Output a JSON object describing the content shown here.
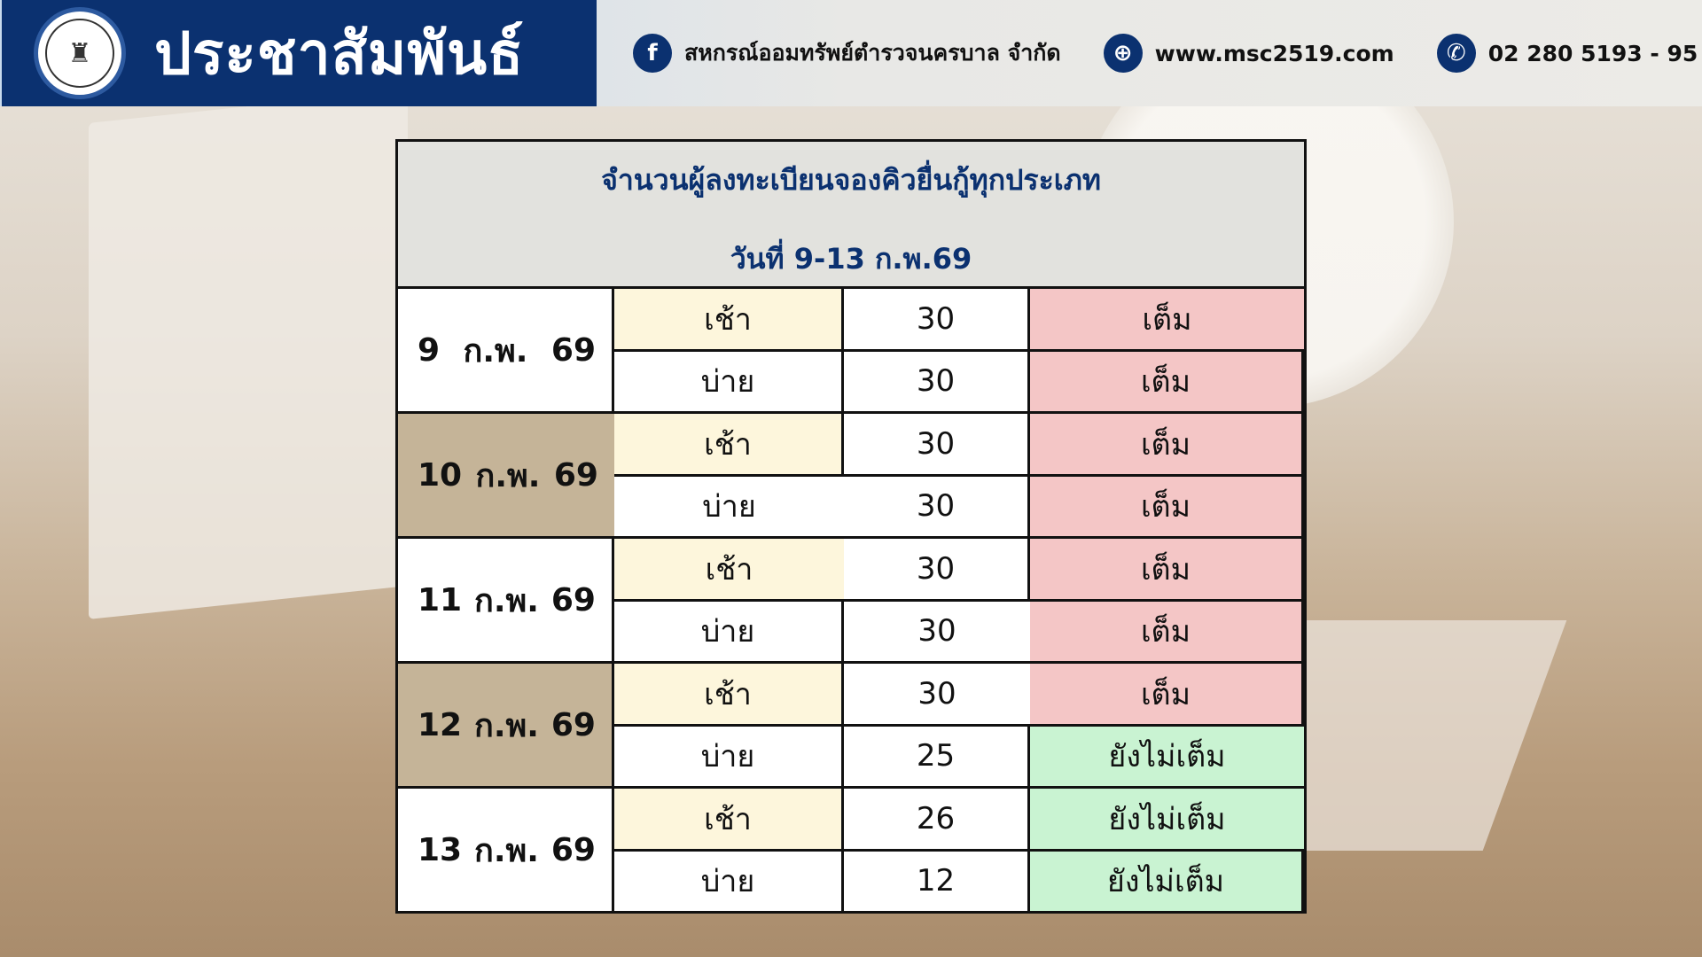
{
  "header": {
    "title": "ประชาสัมพันธ์",
    "facebook": "สหกรณ์ออมทรัพย์ตำรวจนครบาล จำกัด",
    "website": "www.msc2519.com",
    "phone": "02 280 5193 - 95"
  },
  "table": {
    "title": "จำนวนผู้ลงทะเบียนจองคิวยื่นกู้ทุกประเภท",
    "subtitle": "วันที่ 9-13 ก.พ.69",
    "days": [
      {
        "day": "9",
        "month": "ก.พ.",
        "year": "69",
        "slots": [
          {
            "period": "เช้า",
            "count": "30",
            "status": "เต็ม"
          },
          {
            "period": "บ่าย",
            "count": "30",
            "status": "เต็ม"
          }
        ]
      },
      {
        "day": "10",
        "month": "ก.พ.",
        "year": "69",
        "slots": [
          {
            "period": "เช้า",
            "count": "30",
            "status": "เต็ม"
          },
          {
            "period": "บ่าย",
            "count": "30",
            "status": "เต็ม"
          }
        ]
      },
      {
        "day": "11",
        "month": "ก.พ.",
        "year": "69",
        "slots": [
          {
            "period": "เช้า",
            "count": "30",
            "status": "เต็ม"
          },
          {
            "period": "บ่าย",
            "count": "30",
            "status": "เต็ม"
          }
        ]
      },
      {
        "day": "12",
        "month": "ก.พ.",
        "year": "69",
        "slots": [
          {
            "period": "เช้า",
            "count": "30",
            "status": "เต็ม"
          },
          {
            "period": "บ่าย",
            "count": "25",
            "status": "ยังไม่เต็ม"
          }
        ]
      },
      {
        "day": "13",
        "month": "ก.พ.",
        "year": "69",
        "slots": [
          {
            "period": "เช้า",
            "count": "26",
            "status": "ยังไม่เต็ม"
          },
          {
            "period": "บ่าย",
            "count": "12",
            "status": "ยังไม่เต็ม"
          }
        ]
      }
    ]
  },
  "colors": {
    "brand": "#0b3170",
    "full": "#f4c6c6",
    "not_full": "#c9f3d2",
    "morning": "#fdf6dc",
    "alt_date": "#c5b498"
  }
}
